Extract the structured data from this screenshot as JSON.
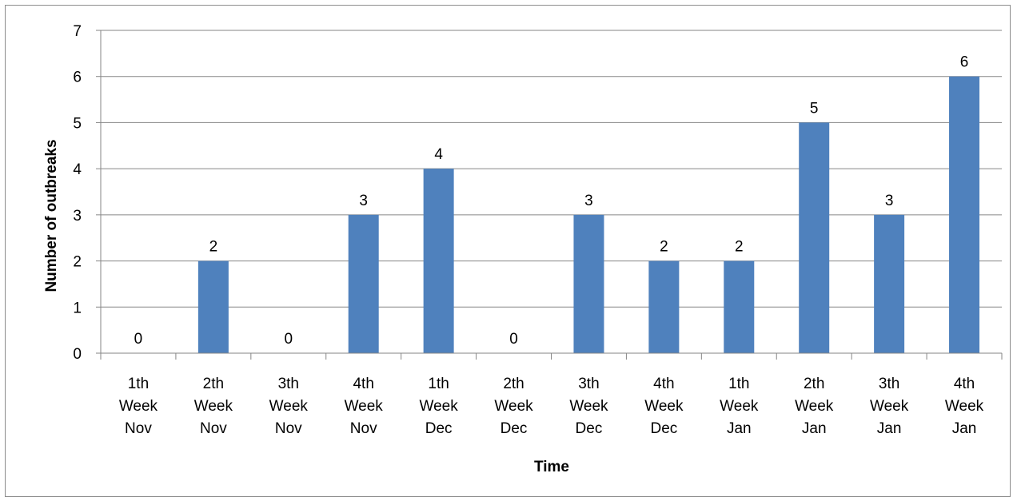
{
  "chart_data": {
    "type": "bar",
    "categories": [
      [
        "1th",
        "Week",
        "Nov"
      ],
      [
        "2th",
        "Week",
        "Nov"
      ],
      [
        "3th",
        "Week",
        "Nov"
      ],
      [
        "4th",
        "Week",
        "Nov"
      ],
      [
        "1th",
        "Week",
        "Dec"
      ],
      [
        "2th",
        "Week",
        "Dec"
      ],
      [
        "3th",
        "Week",
        "Dec"
      ],
      [
        "4th",
        "Week",
        "Dec"
      ],
      [
        "1th",
        "Week",
        "Jan"
      ],
      [
        "2th",
        "Week",
        "Jan"
      ],
      [
        "3th",
        "Week",
        "Jan"
      ],
      [
        "4th",
        "Week",
        "Jan"
      ]
    ],
    "values": [
      0,
      2,
      0,
      3,
      4,
      0,
      3,
      2,
      2,
      5,
      3,
      6
    ],
    "data_labels": [
      "0",
      "2",
      "0",
      "3",
      "4",
      "0",
      "3",
      "2",
      "2",
      "5",
      "3",
      "6"
    ],
    "title": "",
    "xlabel": "Time",
    "ylabel": "Number of outbreaks",
    "ylim": [
      0,
      7
    ],
    "yticks": [
      "0",
      "1",
      "2",
      "3",
      "4",
      "5",
      "6",
      "7"
    ],
    "grid": true,
    "legend": "none",
    "colors": {
      "bar": "#4f81bd",
      "grid": "#868686",
      "axis": "#868686"
    }
  }
}
